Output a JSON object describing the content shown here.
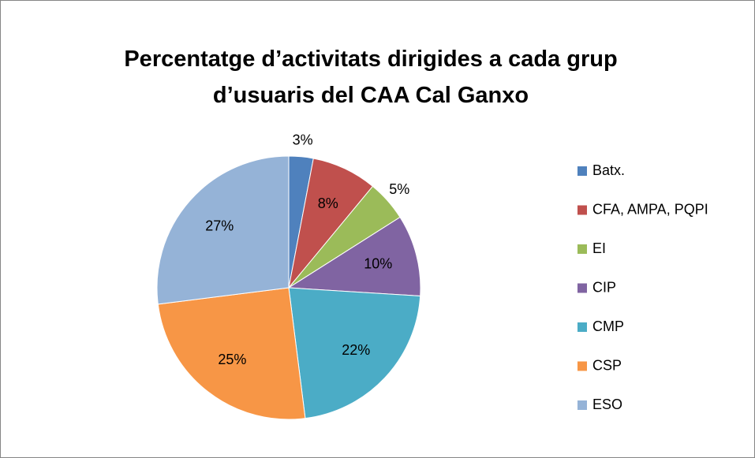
{
  "chart_data": {
    "type": "pie",
    "title": "Percentatge d’activitats dirigides a cada grup d’usuaris del CAA Cal Ganxo",
    "categories": [
      "Batx.",
      "CFA, AMPA, PQPI",
      "EI",
      "CIP",
      "CMP",
      "CSP",
      "ESO"
    ],
    "values": [
      3,
      8,
      5,
      10,
      22,
      25,
      27
    ],
    "value_labels": [
      "3%",
      "8%",
      "5%",
      "10%",
      "22%",
      "25%",
      "27%"
    ],
    "colors": [
      "#4f81bd",
      "#c0504d",
      "#9bbb59",
      "#8064a2",
      "#4bacc6",
      "#f79646",
      "#95b3d7"
    ],
    "legend": "right"
  }
}
